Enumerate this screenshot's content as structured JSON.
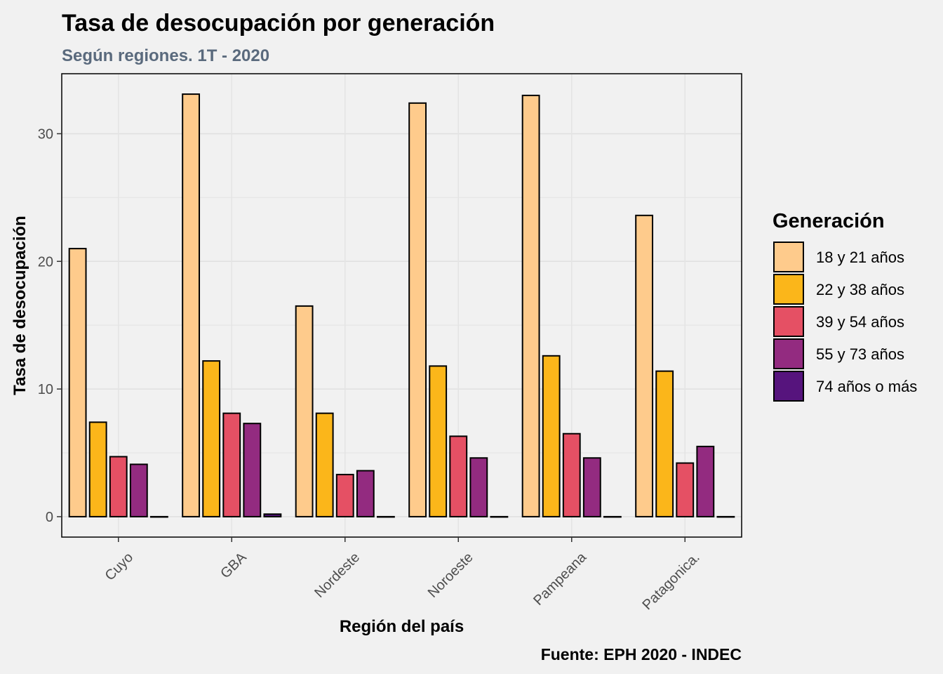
{
  "chart_data": {
    "type": "bar",
    "title": "Tasa de desocupación por generación",
    "subtitle": "Según regiones. 1T - 2020",
    "xlabel": "Región del país",
    "ylabel": "Tasa de desocupación",
    "caption": "Fuente: EPH 2020 - INDEC",
    "categories": [
      "Cuyo",
      "GBA",
      "Nordeste",
      "Noroeste",
      "Pampeana",
      "Patagonica."
    ],
    "series": [
      {
        "name": "18 y 21 años",
        "color": "#fecb8c",
        "values": [
          21.0,
          33.1,
          16.5,
          32.4,
          33.0,
          23.6
        ]
      },
      {
        "name": "22 y 38 años",
        "color": "#fbb61a",
        "values": [
          7.4,
          12.2,
          8.1,
          11.8,
          12.6,
          11.4
        ]
      },
      {
        "name": "39 y 54 años",
        "color": "#e55064",
        "values": [
          4.7,
          8.1,
          3.3,
          6.3,
          6.5,
          4.2
        ]
      },
      {
        "name": "55 y 73 años",
        "color": "#932b80",
        "values": [
          4.1,
          7.3,
          3.6,
          4.6,
          4.6,
          5.5
        ]
      },
      {
        "name": "74 años o más",
        "color": "#56147d",
        "values": [
          0.0,
          0.2,
          0.0,
          0.0,
          0.0,
          0.0
        ]
      }
    ],
    "yticks": [
      0,
      10,
      20,
      30
    ],
    "ylim": [
      -1.6,
      34.7
    ],
    "grid": true,
    "legend": {
      "title": "Generación",
      "position": "right"
    }
  }
}
